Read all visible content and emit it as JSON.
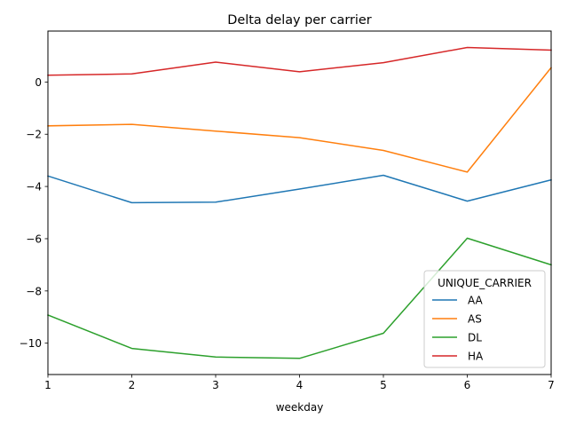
{
  "chart_data": {
    "type": "line",
    "title": "Delta delay per carrier",
    "xlabel": "weekday",
    "ylabel": "",
    "x": [
      1,
      2,
      3,
      4,
      5,
      6,
      7
    ],
    "xlim": [
      1,
      7
    ],
    "ylim": [
      -11.2,
      1.95
    ],
    "xticks": [
      "1",
      "2",
      "3",
      "4",
      "5",
      "6",
      "7"
    ],
    "yticks": [
      0,
      -2,
      -4,
      -6,
      -8,
      -10
    ],
    "grid": false,
    "legend": {
      "title": "UNIQUE_CARRIER",
      "placement": "lower-right"
    },
    "series": [
      {
        "name": "AA",
        "color": "#1f77b4",
        "values": [
          -3.6,
          -4.62,
          -4.6,
          -4.1,
          -3.57,
          -4.56,
          -3.75
        ]
      },
      {
        "name": "AS",
        "color": "#ff7f0e",
        "values": [
          -1.68,
          -1.62,
          -1.88,
          -2.13,
          -2.62,
          -3.45,
          0.55
        ]
      },
      {
        "name": "DL",
        "color": "#2ca02c",
        "values": [
          -8.92,
          -10.2,
          -10.53,
          -10.58,
          -9.62,
          -5.98,
          -7.0
        ]
      },
      {
        "name": "HA",
        "color": "#d62728",
        "values": [
          0.26,
          0.31,
          0.76,
          0.39,
          0.74,
          1.32,
          1.22
        ]
      }
    ]
  }
}
